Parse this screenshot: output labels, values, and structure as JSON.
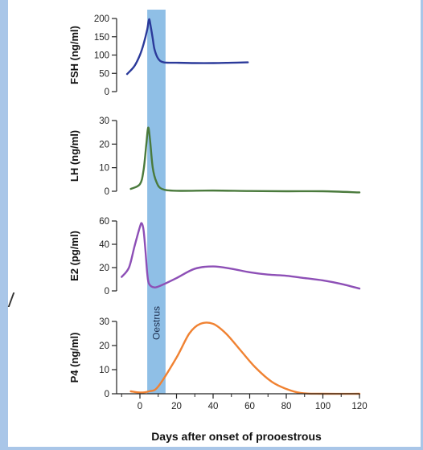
{
  "chart_data": {
    "type": "line",
    "x_axis": {
      "label": "Days after onset of prooestrous",
      "ticks": [
        0,
        20,
        40,
        60,
        80,
        100,
        120
      ],
      "range": [
        -10,
        120
      ]
    },
    "band": {
      "label": "Oestrus",
      "x_start": 4,
      "x_end": 14,
      "color": "#8fbfe6"
    },
    "panels": [
      {
        "ylabel": "FSH (ng/ml)",
        "ylim": [
          0,
          200
        ],
        "yticks": [
          0,
          50,
          100,
          150,
          200
        ],
        "series": [
          {
            "color": "#2b3a9a",
            "points": [
              [
                -7,
                48
              ],
              [
                -3,
                70
              ],
              [
                0,
                100
              ],
              [
                2,
                130
              ],
              [
                4,
                170
              ],
              [
                5,
                198
              ],
              [
                6,
                175
              ],
              [
                7,
                145
              ],
              [
                8,
                115
              ],
              [
                10,
                90
              ],
              [
                13,
                80
              ],
              [
                20,
                79
              ],
              [
                30,
                78
              ],
              [
                40,
                78
              ],
              [
                50,
                79
              ],
              [
                59,
                80
              ]
            ]
          }
        ]
      },
      {
        "ylabel": "LH (ng/ml)",
        "ylim": [
          0,
          30
        ],
        "yticks": [
          0,
          10,
          20,
          30
        ],
        "series": [
          {
            "color": "#4a7a3c",
            "points": [
              [
                -5,
                1
              ],
              [
                0,
                3
              ],
              [
                2,
                9
              ],
              [
                3.5,
                20
              ],
              [
                4.5,
                27
              ],
              [
                5.5,
                22
              ],
              [
                7,
                10
              ],
              [
                9,
                4
              ],
              [
                12,
                1
              ],
              [
                20,
                0.2
              ],
              [
                40,
                0.3
              ],
              [
                60,
                0.1
              ],
              [
                80,
                0
              ],
              [
                100,
                0
              ],
              [
                120,
                -0.5
              ]
            ]
          }
        ]
      },
      {
        "ylabel": "E2 (pg/ml)",
        "ylim": [
          0,
          60
        ],
        "yticks": [
          0,
          20,
          40,
          60
        ],
        "series": [
          {
            "color": "#8d4fb6",
            "points": [
              [
                -10,
                12
              ],
              [
                -6,
                20
              ],
              [
                -3,
                38
              ],
              [
                0,
                55
              ],
              [
                1,
                58
              ],
              [
                2,
                52
              ],
              [
                3,
                35
              ],
              [
                4,
                15
              ],
              [
                5,
                6
              ],
              [
                8,
                3
              ],
              [
                12,
                5
              ],
              [
                20,
                11
              ],
              [
                30,
                19
              ],
              [
                40,
                21
              ],
              [
                50,
                19
              ],
              [
                60,
                16
              ],
              [
                70,
                14
              ],
              [
                80,
                13
              ],
              [
                90,
                11
              ],
              [
                100,
                9
              ],
              [
                110,
                6
              ],
              [
                120,
                2
              ]
            ]
          }
        ]
      },
      {
        "ylabel": "P4 (ng/ml)",
        "ylim": [
          0,
          30
        ],
        "yticks": [
          0,
          10,
          20,
          30
        ],
        "series": [
          {
            "color": "#f08232",
            "points": [
              [
                -5,
                1
              ],
              [
                0,
                0.5
              ],
              [
                5,
                1
              ],
              [
                10,
                3
              ],
              [
                20,
                15
              ],
              [
                27,
                25
              ],
              [
                33,
                29
              ],
              [
                40,
                29
              ],
              [
                47,
                25
              ],
              [
                55,
                18
              ],
              [
                63,
                11
              ],
              [
                72,
                5
              ],
              [
                80,
                2
              ],
              [
                88,
                0.3
              ],
              [
                100,
                0
              ],
              [
                120,
                0
              ]
            ]
          }
        ]
      }
    ]
  }
}
